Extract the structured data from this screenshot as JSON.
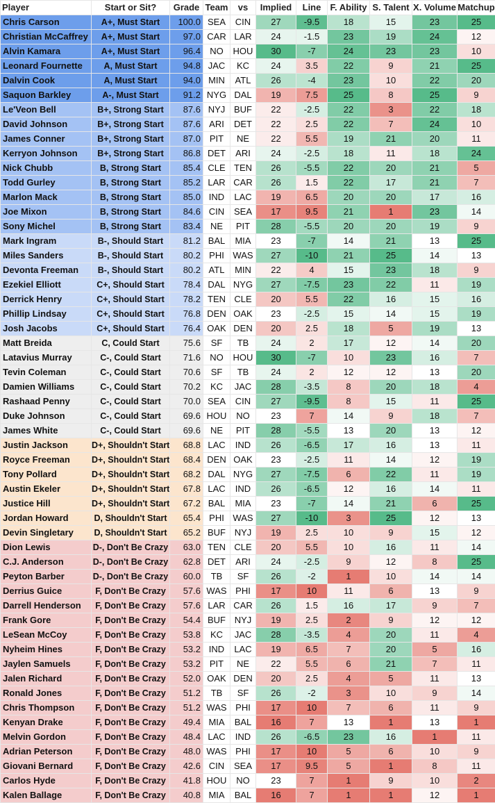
{
  "columns": [
    "Player",
    "Start or Sit?",
    "Grade",
    "Team",
    "vs",
    "Implied",
    "Line",
    "F. Ability",
    "S. Talent",
    "X. Volume",
    "Matchup"
  ],
  "tier_colors": {
    "must": "#6d9eeb",
    "strong": "#a4c2f4",
    "should": "#c9daf8",
    "could": "#eeeeee",
    "shouldnt": "#fce5cd",
    "crazy": "#f4cccc"
  },
  "rows": [
    {
      "tier": "must",
      "player": "Chris Carson",
      "status": "A+, Must Start",
      "grade": "100.0",
      "team": "SEA",
      "vs": "CIN",
      "implied": "27",
      "line": "-9.5",
      "ability": "18",
      "talent": "15",
      "volume": "23",
      "matchup": "25"
    },
    {
      "tier": "must",
      "player": "Christian McCaffrey",
      "status": "A+, Must Start",
      "grade": "97.0",
      "team": "CAR",
      "vs": "LAR",
      "implied": "24",
      "line": "-1.5",
      "ability": "23",
      "talent": "19",
      "volume": "24",
      "matchup": "12"
    },
    {
      "tier": "must",
      "player": "Alvin Kamara",
      "status": "A+, Must Start",
      "grade": "96.4",
      "team": "NO",
      "vs": "HOU",
      "implied": "30",
      "line": "-7",
      "ability": "24",
      "talent": "23",
      "volume": "23",
      "matchup": "10"
    },
    {
      "tier": "must",
      "player": "Leonard Fournette",
      "status": "A, Must Start",
      "grade": "94.8",
      "team": "JAC",
      "vs": "KC",
      "implied": "24",
      "line": "3.5",
      "ability": "22",
      "talent": "9",
      "volume": "21",
      "matchup": "25"
    },
    {
      "tier": "must",
      "player": "Dalvin Cook",
      "status": "A, Must Start",
      "grade": "94.0",
      "team": "MIN",
      "vs": "ATL",
      "implied": "26",
      "line": "-4",
      "ability": "23",
      "talent": "10",
      "volume": "22",
      "matchup": "20"
    },
    {
      "tier": "must",
      "player": "Saquon Barkley",
      "status": "A-, Must Start",
      "grade": "91.2",
      "team": "NYG",
      "vs": "DAL",
      "implied": "19",
      "line": "7.5",
      "ability": "25",
      "talent": "8",
      "volume": "25",
      "matchup": "9"
    },
    {
      "tier": "strong",
      "player": "Le'Veon Bell",
      "status": "B+, Strong Start",
      "grade": "87.6",
      "team": "NYJ",
      "vs": "BUF",
      "implied": "22",
      "line": "-2.5",
      "ability": "22",
      "talent": "3",
      "volume": "22",
      "matchup": "18"
    },
    {
      "tier": "strong",
      "player": "David Johnson",
      "status": "B+, Strong Start",
      "grade": "87.6",
      "team": "ARI",
      "vs": "DET",
      "implied": "22",
      "line": "2.5",
      "ability": "22",
      "talent": "7",
      "volume": "24",
      "matchup": "10"
    },
    {
      "tier": "strong",
      "player": "James Conner",
      "status": "B+, Strong Start",
      "grade": "87.0",
      "team": "PIT",
      "vs": "NE",
      "implied": "22",
      "line": "5.5",
      "ability": "19",
      "talent": "21",
      "volume": "20",
      "matchup": "11"
    },
    {
      "tier": "strong",
      "player": "Kerryon Johnson",
      "status": "B+, Strong Start",
      "grade": "86.8",
      "team": "DET",
      "vs": "ARI",
      "implied": "24",
      "line": "-2.5",
      "ability": "18",
      "talent": "11",
      "volume": "18",
      "matchup": "24"
    },
    {
      "tier": "strong",
      "player": "Nick Chubb",
      "status": "B, Strong Start",
      "grade": "85.4",
      "team": "CLE",
      "vs": "TEN",
      "implied": "26",
      "line": "-5.5",
      "ability": "22",
      "talent": "20",
      "volume": "21",
      "matchup": "5"
    },
    {
      "tier": "strong",
      "player": "Todd Gurley",
      "status": "B, Strong Start",
      "grade": "85.2",
      "team": "LAR",
      "vs": "CAR",
      "implied": "26",
      "line": "1.5",
      "ability": "22",
      "talent": "17",
      "volume": "21",
      "matchup": "7"
    },
    {
      "tier": "strong",
      "player": "Marlon Mack",
      "status": "B, Strong Start",
      "grade": "85.0",
      "team": "IND",
      "vs": "LAC",
      "implied": "19",
      "line": "6.5",
      "ability": "20",
      "talent": "20",
      "volume": "17",
      "matchup": "16"
    },
    {
      "tier": "strong",
      "player": "Joe Mixon",
      "status": "B, Strong Start",
      "grade": "84.6",
      "team": "CIN",
      "vs": "SEA",
      "implied": "17",
      "line": "9.5",
      "ability": "21",
      "talent": "1",
      "volume": "23",
      "matchup": "14"
    },
    {
      "tier": "strong",
      "player": "Sony Michel",
      "status": "B, Strong Start",
      "grade": "83.4",
      "team": "NE",
      "vs": "PIT",
      "implied": "28",
      "line": "-5.5",
      "ability": "20",
      "talent": "20",
      "volume": "19",
      "matchup": "9"
    },
    {
      "tier": "should",
      "player": "Mark Ingram",
      "status": "B-, Should Start",
      "grade": "81.2",
      "team": "BAL",
      "vs": "MIA",
      "implied": "23",
      "line": "-7",
      "ability": "14",
      "talent": "21",
      "volume": "13",
      "matchup": "25"
    },
    {
      "tier": "should",
      "player": "Miles Sanders",
      "status": "B-, Should Start",
      "grade": "80.2",
      "team": "PHI",
      "vs": "WAS",
      "implied": "27",
      "line": "-10",
      "ability": "21",
      "talent": "25",
      "volume": "14",
      "matchup": "13"
    },
    {
      "tier": "should",
      "player": "Devonta Freeman",
      "status": "B-, Should Start",
      "grade": "80.2",
      "team": "ATL",
      "vs": "MIN",
      "implied": "22",
      "line": "4",
      "ability": "15",
      "talent": "23",
      "volume": "18",
      "matchup": "9"
    },
    {
      "tier": "should",
      "player": "Ezekiel Elliott",
      "status": "C+, Should Start",
      "grade": "78.4",
      "team": "DAL",
      "vs": "NYG",
      "implied": "27",
      "line": "-7.5",
      "ability": "23",
      "talent": "22",
      "volume": "11",
      "matchup": "19"
    },
    {
      "tier": "should",
      "player": "Derrick Henry",
      "status": "C+, Should Start",
      "grade": "78.2",
      "team": "TEN",
      "vs": "CLE",
      "implied": "20",
      "line": "5.5",
      "ability": "22",
      "talent": "16",
      "volume": "15",
      "matchup": "16"
    },
    {
      "tier": "should",
      "player": "Phillip Lindsay",
      "status": "C+, Should Start",
      "grade": "76.8",
      "team": "DEN",
      "vs": "OAK",
      "implied": "23",
      "line": "-2.5",
      "ability": "15",
      "talent": "14",
      "volume": "15",
      "matchup": "19"
    },
    {
      "tier": "should",
      "player": "Josh Jacobs",
      "status": "C+, Should Start",
      "grade": "76.4",
      "team": "OAK",
      "vs": "DEN",
      "implied": "20",
      "line": "2.5",
      "ability": "18",
      "talent": "5",
      "volume": "19",
      "matchup": "13"
    },
    {
      "tier": "could",
      "player": "Matt Breida",
      "status": "C, Could Start",
      "grade": "75.6",
      "team": "SF",
      "vs": "TB",
      "implied": "24",
      "line": "2",
      "ability": "17",
      "talent": "12",
      "volume": "14",
      "matchup": "20"
    },
    {
      "tier": "could",
      "player": "Latavius Murray",
      "status": "C-, Could Start",
      "grade": "71.6",
      "team": "NO",
      "vs": "HOU",
      "implied": "30",
      "line": "-7",
      "ability": "10",
      "talent": "23",
      "volume": "16",
      "matchup": "7"
    },
    {
      "tier": "could",
      "player": "Tevin Coleman",
      "status": "C-, Could Start",
      "grade": "70.6",
      "team": "SF",
      "vs": "TB",
      "implied": "24",
      "line": "2",
      "ability": "12",
      "talent": "12",
      "volume": "13",
      "matchup": "20"
    },
    {
      "tier": "could",
      "player": "Damien Williams",
      "status": "C-, Could Start",
      "grade": "70.2",
      "team": "KC",
      "vs": "JAC",
      "implied": "28",
      "line": "-3.5",
      "ability": "8",
      "talent": "20",
      "volume": "18",
      "matchup": "4"
    },
    {
      "tier": "could",
      "player": "Rashaad Penny",
      "status": "C-, Could Start",
      "grade": "70.0",
      "team": "SEA",
      "vs": "CIN",
      "implied": "27",
      "line": "-9.5",
      "ability": "8",
      "talent": "15",
      "volume": "11",
      "matchup": "25"
    },
    {
      "tier": "could",
      "player": "Duke Johnson",
      "status": "C-, Could Start",
      "grade": "69.6",
      "team": "HOU",
      "vs": "NO",
      "implied": "23",
      "line": "7",
      "ability": "14",
      "talent": "9",
      "volume": "18",
      "matchup": "7"
    },
    {
      "tier": "could",
      "player": "James White",
      "status": "C-, Could Start",
      "grade": "69.6",
      "team": "NE",
      "vs": "PIT",
      "implied": "28",
      "line": "-5.5",
      "ability": "13",
      "talent": "20",
      "volume": "13",
      "matchup": "12"
    },
    {
      "tier": "shouldnt",
      "player": "Justin Jackson",
      "status": "D+, Shouldn't Start",
      "grade": "68.8",
      "team": "LAC",
      "vs": "IND",
      "implied": "26",
      "line": "-6.5",
      "ability": "17",
      "talent": "16",
      "volume": "13",
      "matchup": "11"
    },
    {
      "tier": "shouldnt",
      "player": "Royce Freeman",
      "status": "D+, Shouldn't Start",
      "grade": "68.4",
      "team": "DEN",
      "vs": "OAK",
      "implied": "23",
      "line": "-2.5",
      "ability": "11",
      "talent": "14",
      "volume": "12",
      "matchup": "19"
    },
    {
      "tier": "shouldnt",
      "player": "Tony Pollard",
      "status": "D+, Shouldn't Start",
      "grade": "68.2",
      "team": "DAL",
      "vs": "NYG",
      "implied": "27",
      "line": "-7.5",
      "ability": "6",
      "talent": "22",
      "volume": "11",
      "matchup": "19"
    },
    {
      "tier": "shouldnt",
      "player": "Austin Ekeler",
      "status": "D+, Shouldn't Start",
      "grade": "67.8",
      "team": "LAC",
      "vs": "IND",
      "implied": "26",
      "line": "-6.5",
      "ability": "12",
      "talent": "16",
      "volume": "14",
      "matchup": "11"
    },
    {
      "tier": "shouldnt",
      "player": "Justice Hill",
      "status": "D+, Shouldn't Start",
      "grade": "67.2",
      "team": "BAL",
      "vs": "MIA",
      "implied": "23",
      "line": "-7",
      "ability": "14",
      "talent": "21",
      "volume": "6",
      "matchup": "25"
    },
    {
      "tier": "shouldnt",
      "player": "Jordan Howard",
      "status": "D, Shouldn't Start",
      "grade": "65.4",
      "team": "PHI",
      "vs": "WAS",
      "implied": "27",
      "line": "-10",
      "ability": "3",
      "talent": "25",
      "volume": "12",
      "matchup": "13"
    },
    {
      "tier": "shouldnt",
      "player": "Devin Singletary",
      "status": "D, Shouldn't Start",
      "grade": "65.2",
      "team": "BUF",
      "vs": "NYJ",
      "implied": "19",
      "line": "2.5",
      "ability": "10",
      "talent": "9",
      "volume": "15",
      "matchup": "12"
    },
    {
      "tier": "crazy",
      "player": "Dion Lewis",
      "status": "D-, Don't Be Crazy",
      "grade": "63.0",
      "team": "TEN",
      "vs": "CLE",
      "implied": "20",
      "line": "5.5",
      "ability": "10",
      "talent": "16",
      "volume": "11",
      "matchup": "14"
    },
    {
      "tier": "crazy",
      "player": "C.J. Anderson",
      "status": "D-, Don't Be Crazy",
      "grade": "62.8",
      "team": "DET",
      "vs": "ARI",
      "implied": "24",
      "line": "-2.5",
      "ability": "9",
      "talent": "12",
      "volume": "8",
      "matchup": "25"
    },
    {
      "tier": "crazy",
      "player": "Peyton Barber",
      "status": "D-, Don't Be Crazy",
      "grade": "60.0",
      "team": "TB",
      "vs": "SF",
      "implied": "26",
      "line": "-2",
      "ability": "1",
      "talent": "10",
      "volume": "14",
      "matchup": "14"
    },
    {
      "tier": "crazy",
      "player": "Derrius Guice",
      "status": "F, Don't Be Crazy",
      "grade": "57.6",
      "team": "WAS",
      "vs": "PHI",
      "implied": "17",
      "line": "10",
      "ability": "11",
      "talent": "6",
      "volume": "13",
      "matchup": "9"
    },
    {
      "tier": "crazy",
      "player": "Darrell Henderson",
      "status": "F, Don't Be Crazy",
      "grade": "57.6",
      "team": "LAR",
      "vs": "CAR",
      "implied": "26",
      "line": "1.5",
      "ability": "16",
      "talent": "17",
      "volume": "9",
      "matchup": "7"
    },
    {
      "tier": "crazy",
      "player": "Frank Gore",
      "status": "F, Don't Be Crazy",
      "grade": "54.4",
      "team": "BUF",
      "vs": "NYJ",
      "implied": "19",
      "line": "2.5",
      "ability": "2",
      "talent": "9",
      "volume": "12",
      "matchup": "12"
    },
    {
      "tier": "crazy",
      "player": "LeSean McCoy",
      "status": "F, Don't Be Crazy",
      "grade": "53.8",
      "team": "KC",
      "vs": "JAC",
      "implied": "28",
      "line": "-3.5",
      "ability": "4",
      "talent": "20",
      "volume": "11",
      "matchup": "4"
    },
    {
      "tier": "crazy",
      "player": "Nyheim Hines",
      "status": "F, Don't Be Crazy",
      "grade": "53.2",
      "team": "IND",
      "vs": "LAC",
      "implied": "19",
      "line": "6.5",
      "ability": "7",
      "talent": "20",
      "volume": "5",
      "matchup": "16"
    },
    {
      "tier": "crazy",
      "player": "Jaylen Samuels",
      "status": "F, Don't Be Crazy",
      "grade": "53.2",
      "team": "PIT",
      "vs": "NE",
      "implied": "22",
      "line": "5.5",
      "ability": "6",
      "talent": "21",
      "volume": "7",
      "matchup": "11"
    },
    {
      "tier": "crazy",
      "player": "Jalen Richard",
      "status": "F, Don't Be Crazy",
      "grade": "52.0",
      "team": "OAK",
      "vs": "DEN",
      "implied": "20",
      "line": "2.5",
      "ability": "4",
      "talent": "5",
      "volume": "11",
      "matchup": "13"
    },
    {
      "tier": "crazy",
      "player": "Ronald Jones",
      "status": "F, Don't Be Crazy",
      "grade": "51.2",
      "team": "TB",
      "vs": "SF",
      "implied": "26",
      "line": "-2",
      "ability": "3",
      "talent": "10",
      "volume": "9",
      "matchup": "14"
    },
    {
      "tier": "crazy",
      "player": "Chris Thompson",
      "status": "F, Don't Be Crazy",
      "grade": "51.2",
      "team": "WAS",
      "vs": "PHI",
      "implied": "17",
      "line": "10",
      "ability": "7",
      "talent": "6",
      "volume": "11",
      "matchup": "9"
    },
    {
      "tier": "crazy",
      "player": "Kenyan Drake",
      "status": "F, Don't Be Crazy",
      "grade": "49.4",
      "team": "MIA",
      "vs": "BAL",
      "implied": "16",
      "line": "7",
      "ability": "13",
      "talent": "1",
      "volume": "13",
      "matchup": "1"
    },
    {
      "tier": "crazy",
      "player": "Melvin Gordon",
      "status": "F, Don't Be Crazy",
      "grade": "48.4",
      "team": "LAC",
      "vs": "IND",
      "implied": "26",
      "line": "-6.5",
      "ability": "23",
      "talent": "16",
      "volume": "1",
      "matchup": "11"
    },
    {
      "tier": "crazy",
      "player": "Adrian Peterson",
      "status": "F, Don't Be Crazy",
      "grade": "48.0",
      "team": "WAS",
      "vs": "PHI",
      "implied": "17",
      "line": "10",
      "ability": "5",
      "talent": "6",
      "volume": "10",
      "matchup": "9"
    },
    {
      "tier": "crazy",
      "player": "Giovani Bernard",
      "status": "F, Don't Be Crazy",
      "grade": "42.6",
      "team": "CIN",
      "vs": "SEA",
      "implied": "17",
      "line": "9.5",
      "ability": "5",
      "talent": "1",
      "volume": "8",
      "matchup": "11"
    },
    {
      "tier": "crazy",
      "player": "Carlos Hyde",
      "status": "F, Don't Be Crazy",
      "grade": "41.8",
      "team": "HOU",
      "vs": "NO",
      "implied": "23",
      "line": "7",
      "ability": "1",
      "talent": "9",
      "volume": "10",
      "matchup": "2"
    },
    {
      "tier": "crazy",
      "player": "Kalen Ballage",
      "status": "F, Don't Be Crazy",
      "grade": "40.8",
      "team": "MIA",
      "vs": "BAL",
      "implied": "16",
      "line": "7",
      "ability": "1",
      "talent": "1",
      "volume": "12",
      "matchup": "1"
    }
  ]
}
